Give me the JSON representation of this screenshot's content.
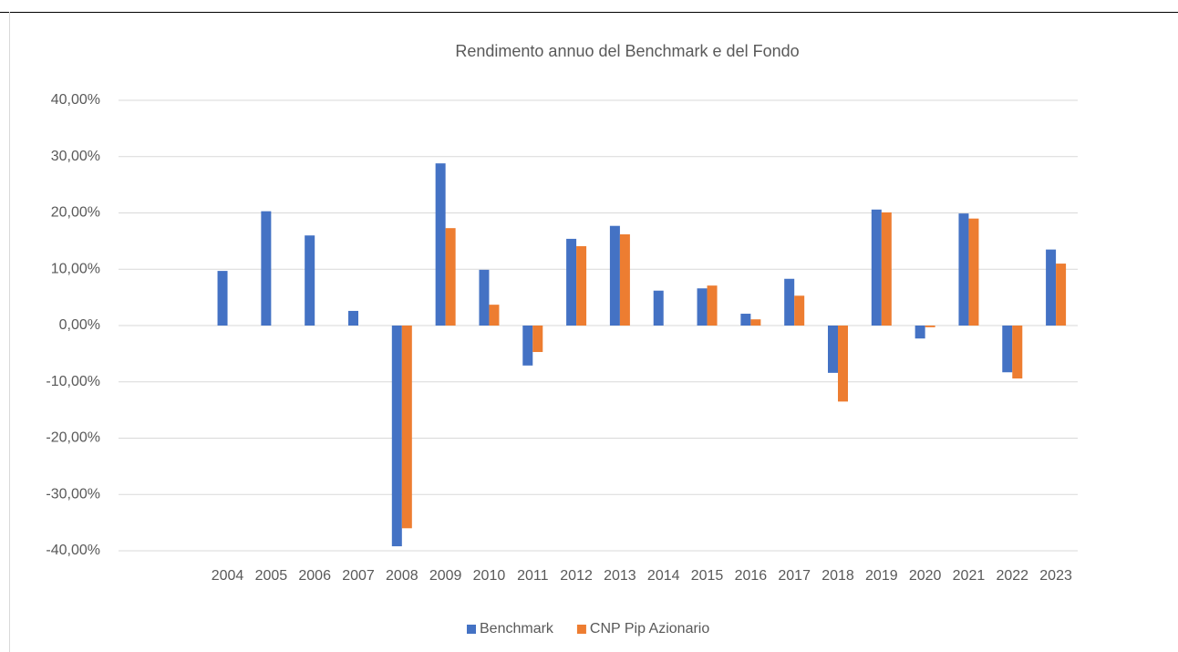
{
  "chart_data": {
    "type": "bar",
    "title": "Rendimento annuo del Benchmark e del Fondo",
    "categories": [
      null,
      null,
      "2004",
      "2005",
      "2006",
      "2007",
      "2008",
      "2009",
      "2010",
      "2011",
      "2012",
      "2013",
      "2014",
      "2015",
      "2016",
      "2017",
      "2018",
      "2019",
      "2020",
      "2021",
      "2022",
      "2023"
    ],
    "series": [
      {
        "name": "Benchmark",
        "color": "#4472c4",
        "values": [
          null,
          null,
          9.7,
          20.3,
          16.0,
          2.6,
          -39.2,
          28.8,
          9.9,
          -7.1,
          15.4,
          17.7,
          6.2,
          6.6,
          2.1,
          8.3,
          -8.4,
          20.6,
          -2.3,
          19.9,
          -8.3,
          13.5
        ]
      },
      {
        "name": "CNP Pip Azionario",
        "color": "#ed7d31",
        "values": [
          null,
          null,
          null,
          null,
          null,
          null,
          -36.0,
          17.3,
          3.7,
          -4.7,
          14.1,
          16.2,
          null,
          7.1,
          1.1,
          5.3,
          -13.5,
          20.1,
          -0.3,
          19.0,
          -9.4,
          11.0
        ]
      }
    ],
    "ylim": [
      -40,
      40
    ],
    "yticks": [
      {
        "value": -40,
        "label": "-40,00%"
      },
      {
        "value": -30,
        "label": "-30,00%"
      },
      {
        "value": -20,
        "label": "-20,00%"
      },
      {
        "value": -10,
        "label": "-10,00%"
      },
      {
        "value": 0,
        "label": "0,00%"
      },
      {
        "value": 10,
        "label": "10,00%"
      },
      {
        "value": 20,
        "label": "20,00%"
      },
      {
        "value": 30,
        "label": "30,00%"
      },
      {
        "value": 40,
        "label": "40,00%"
      }
    ],
    "grid": true,
    "legend": "bottom"
  }
}
